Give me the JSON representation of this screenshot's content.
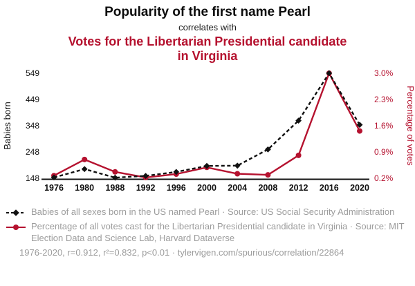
{
  "title": {
    "line1": "Popularity of the first name Pearl",
    "line2": "correlates with",
    "line3": "Votes for the Libertarian Presidential candidate in Virginia"
  },
  "colors": {
    "accent_red": "#b5122f",
    "series_black": "#111111",
    "text_gray": "#9c9c9c"
  },
  "chart_data": {
    "type": "line",
    "title": "Popularity of the first name Pearl correlates with Votes for the Libertarian Presidential candidate in Virginia",
    "categories": [
      "1976",
      "1980",
      "1988",
      "1992",
      "1996",
      "2000",
      "2004",
      "2008",
      "2012",
      "2016",
      "2020"
    ],
    "series": [
      {
        "name": "Babies of all sexes born in the US named Pearl",
        "axis": "left",
        "color": "#111111",
        "style": "dashed",
        "marker": "diamond",
        "values": [
          151,
          183,
          150,
          157,
          172,
          195,
          196,
          258,
          368,
          549,
          352
        ]
      },
      {
        "name": "Percentage of all votes cast for the Libertarian Presidential candidate in Virginia",
        "axis": "right",
        "color": "#b5122f",
        "style": "solid",
        "marker": "circle",
        "values": [
          0.27,
          0.7,
          0.37,
          0.22,
          0.31,
          0.49,
          0.32,
          0.29,
          0.81,
          3.0,
          1.46
        ]
      }
    ],
    "left_axis": {
      "label": "Babies born",
      "ticks": [
        148,
        248,
        348,
        449,
        549
      ],
      "min": 148,
      "max": 549
    },
    "right_axis": {
      "label": "Percentage of votes",
      "ticks": [
        "0.2%",
        "0.9%",
        "1.6%",
        "2.3%",
        "3.0%"
      ],
      "min": 0.2,
      "max": 3.0
    },
    "grid": false,
    "legend_position": "bottom"
  },
  "legend": [
    {
      "label": "Babies of all sexes born in the US named Pearl · Source: US Social Security Administration"
    },
    {
      "label": "Percentage of all votes cast for the Libertarian Presidential candidate in Virginia · Source: MIT Election Data and Science Lab, Harvard Dataverse"
    }
  ],
  "footer": "1976-2020, r=0.912, r²=0.832, p<0.01 · tylervigen.com/spurious/correlation/22864"
}
